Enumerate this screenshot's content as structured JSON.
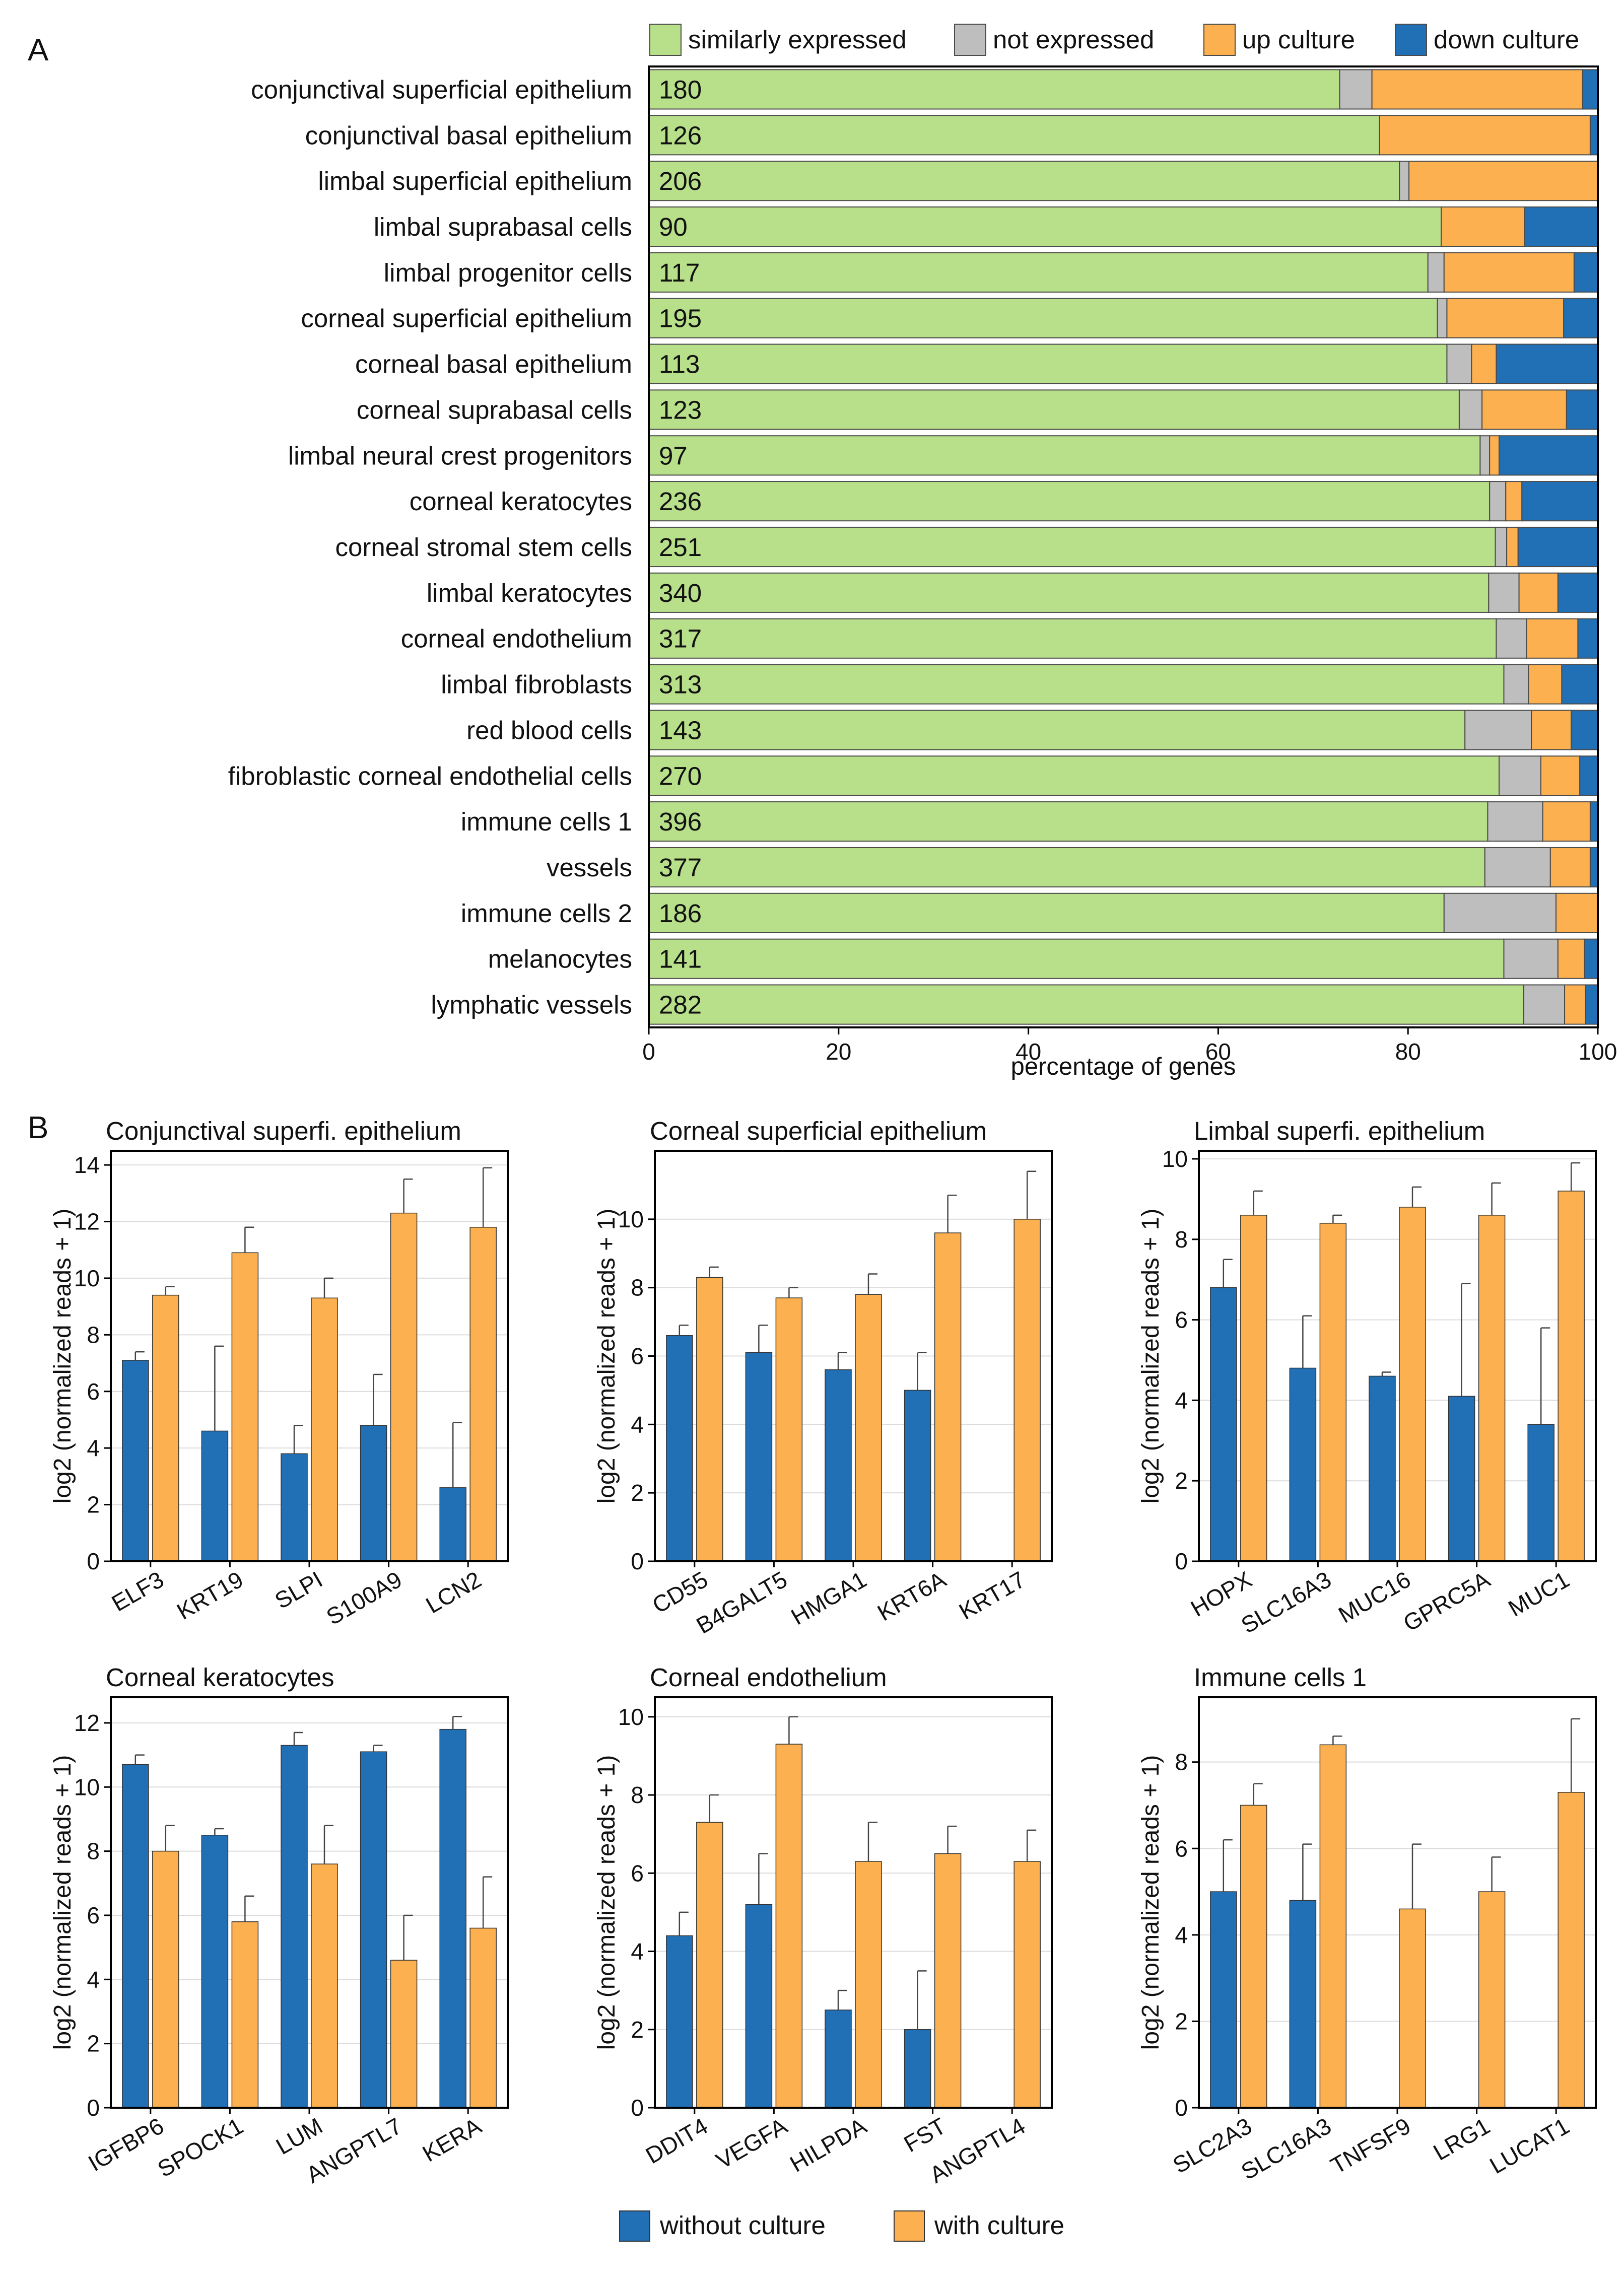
{
  "figure": {
    "panel_a_letter": "A",
    "panel_b_letter": "B"
  },
  "colors": {
    "similar": "#b8df8a",
    "not_expressed": "#bebebe",
    "up": "#fdb050",
    "down": "#2170b6",
    "without": "#2170b6",
    "with": "#fdb050"
  },
  "chart_data": [
    {
      "type": "stacked-bar-horizontal",
      "title": "",
      "xlabel": "percentage of genes",
      "xlim": [
        0,
        100
      ],
      "xticks": [
        "0",
        "20",
        "40",
        "60",
        "80",
        "100"
      ],
      "legend": [
        {
          "key": "similar",
          "label": "similarly expressed"
        },
        {
          "key": "not_expressed",
          "label": "not expressed"
        },
        {
          "key": "up",
          "label": "up culture"
        },
        {
          "key": "down",
          "label": "down culture"
        }
      ],
      "rows": [
        {
          "label": "conjunctival superficial epithelium",
          "count": "180",
          "similar": 72.8,
          "not_expressed": 3.4,
          "up": 22.2,
          "down": 1.6
        },
        {
          "label": "conjunctival basal epithelium",
          "count": "126",
          "similar": 77.0,
          "not_expressed": 0,
          "up": 22.2,
          "down": 0.8
        },
        {
          "label": "limbal superficial epithelium",
          "count": "206",
          "similar": 79.1,
          "not_expressed": 1.0,
          "up": 19.9,
          "down": 0
        },
        {
          "label": "limbal suprabasal cells",
          "count": "90",
          "similar": 83.5,
          "not_expressed": 0,
          "up": 8.8,
          "down": 7.7
        },
        {
          "label": "limbal progenitor cells",
          "count": "117",
          "similar": 82.1,
          "not_expressed": 1.7,
          "up": 13.7,
          "down": 2.5
        },
        {
          "label": "corneal superficial epithelium",
          "count": "195",
          "similar": 83.1,
          "not_expressed": 1.0,
          "up": 12.3,
          "down": 3.6
        },
        {
          "label": "corneal basal epithelium",
          "count": "113",
          "similar": 84.1,
          "not_expressed": 2.6,
          "up": 2.6,
          "down": 10.7
        },
        {
          "label": "corneal suprabasal cells",
          "count": "123",
          "similar": 85.4,
          "not_expressed": 2.4,
          "up": 8.9,
          "down": 3.3
        },
        {
          "label": "limbal neural crest progenitors",
          "count": "97",
          "similar": 87.6,
          "not_expressed": 1.0,
          "up": 1.0,
          "down": 10.4
        },
        {
          "label": "corneal keratocytes",
          "count": "236",
          "similar": 88.6,
          "not_expressed": 1.7,
          "up": 1.7,
          "down": 8.0
        },
        {
          "label": "corneal stromal stem cells",
          "count": "251",
          "similar": 89.2,
          "not_expressed": 1.2,
          "up": 1.2,
          "down": 8.4
        },
        {
          "label": "limbal keratocytes",
          "count": "340",
          "similar": 88.5,
          "not_expressed": 3.2,
          "up": 4.1,
          "down": 4.2
        },
        {
          "label": "corneal endothelium",
          "count": "317",
          "similar": 89.3,
          "not_expressed": 3.2,
          "up": 5.4,
          "down": 2.1
        },
        {
          "label": "limbal fibroblasts",
          "count": "313",
          "similar": 90.1,
          "not_expressed": 2.6,
          "up": 3.5,
          "down": 3.8
        },
        {
          "label": "red blood cells",
          "count": "143",
          "similar": 86.0,
          "not_expressed": 7.0,
          "up": 4.2,
          "down": 2.8
        },
        {
          "label": "fibroblastic corneal endothelial cells",
          "count": "270",
          "similar": 89.6,
          "not_expressed": 4.4,
          "up": 4.1,
          "down": 1.9
        },
        {
          "label": "immune cells 1",
          "count": "396",
          "similar": 88.4,
          "not_expressed": 5.8,
          "up": 5.0,
          "down": 0.8
        },
        {
          "label": "vessels",
          "count": "377",
          "similar": 88.1,
          "not_expressed": 6.9,
          "up": 4.2,
          "down": 0.8
        },
        {
          "label": "immune cells 2",
          "count": "186",
          "similar": 83.8,
          "not_expressed": 11.8,
          "up": 4.4,
          "down": 0
        },
        {
          "label": "melanocytes",
          "count": "141",
          "similar": 90.1,
          "not_expressed": 5.7,
          "up": 2.8,
          "down": 1.4
        },
        {
          "label": "lymphatic vessels",
          "count": "282",
          "similar": 92.2,
          "not_expressed": 4.3,
          "up": 2.2,
          "down": 1.3
        }
      ]
    },
    {
      "type": "bar",
      "title": "Conjunctival superfi. epithelium",
      "ylabel": "log2 (normalized reads + 1)",
      "ylim": [
        0,
        14.5
      ],
      "yticks": [
        0,
        2,
        4,
        6,
        8,
        10,
        12,
        14
      ],
      "categories": [
        "ELF3",
        "KRT19",
        "SLPI",
        "S100A9",
        "LCN2"
      ],
      "series": [
        {
          "name": "without culture",
          "values": [
            7.1,
            4.6,
            3.8,
            4.8,
            2.6
          ],
          "errors": [
            0.3,
            3.0,
            1.0,
            1.8,
            2.3
          ]
        },
        {
          "name": "with culture",
          "values": [
            9.4,
            10.9,
            9.3,
            12.3,
            11.8
          ],
          "errors": [
            0.3,
            0.9,
            0.7,
            1.2,
            2.1
          ]
        }
      ]
    },
    {
      "type": "bar",
      "title": "Corneal superficial epithelium",
      "ylabel": "log2 (normalized reads + 1)",
      "ylim": [
        0,
        12
      ],
      "yticks": [
        0,
        2,
        4,
        6,
        8,
        10
      ],
      "categories": [
        "CD55",
        "B4GALT5",
        "HMGA1",
        "KRT6A",
        "KRT17"
      ],
      "series": [
        {
          "name": "without culture",
          "values": [
            6.6,
            6.1,
            5.6,
            5.0,
            0
          ],
          "errors": [
            0.3,
            0.8,
            0.5,
            1.1,
            0
          ]
        },
        {
          "name": "with culture",
          "values": [
            8.3,
            7.7,
            7.8,
            9.6,
            10.0
          ],
          "errors": [
            0.3,
            0.3,
            0.6,
            1.1,
            1.4
          ]
        }
      ]
    },
    {
      "type": "bar",
      "title": "Limbal superfi. epithelium",
      "ylabel": "log2 (normalized reads + 1)",
      "ylim": [
        0,
        10.2
      ],
      "yticks": [
        0,
        2,
        4,
        6,
        8,
        10
      ],
      "categories": [
        "HOPX",
        "SLC16A3",
        "MUC16",
        "GPRC5A",
        "MUC1"
      ],
      "series": [
        {
          "name": "without culture",
          "values": [
            6.8,
            4.8,
            4.6,
            4.1,
            3.4
          ],
          "errors": [
            0.7,
            1.3,
            0.1,
            2.8,
            2.4
          ]
        },
        {
          "name": "with culture",
          "values": [
            8.6,
            8.4,
            8.8,
            8.6,
            9.2
          ],
          "errors": [
            0.6,
            0.2,
            0.5,
            0.8,
            0.7
          ]
        }
      ]
    },
    {
      "type": "bar",
      "title": "Corneal keratocytes",
      "ylabel": "log2 (normalized reads + 1)",
      "ylim": [
        0,
        12.8
      ],
      "yticks": [
        0,
        2,
        4,
        6,
        8,
        10,
        12
      ],
      "categories": [
        "IGFBP6",
        "SPOCK1",
        "LUM",
        "ANGPTL7",
        "KERA"
      ],
      "series": [
        {
          "name": "without culture",
          "values": [
            10.7,
            8.5,
            11.3,
            11.1,
            11.8
          ],
          "errors": [
            0.3,
            0.2,
            0.4,
            0.2,
            0.4
          ]
        },
        {
          "name": "with culture",
          "values": [
            8.0,
            5.8,
            7.6,
            4.6,
            5.6
          ],
          "errors": [
            0.8,
            0.8,
            1.2,
            1.4,
            1.6
          ]
        }
      ]
    },
    {
      "type": "bar",
      "title": "Corneal endothelium",
      "ylabel": "log2 (normalized reads + 1)",
      "ylim": [
        0,
        10.5
      ],
      "yticks": [
        0,
        2,
        4,
        6,
        8,
        10
      ],
      "categories": [
        "DDIT4",
        "VEGFA",
        "HILPDA",
        "FST",
        "ANGPTL4"
      ],
      "series": [
        {
          "name": "without culture",
          "values": [
            4.4,
            5.2,
            2.5,
            2.0,
            0
          ],
          "errors": [
            0.6,
            1.3,
            0.5,
            1.5,
            0
          ]
        },
        {
          "name": "with culture",
          "values": [
            7.3,
            9.3,
            6.3,
            6.5,
            6.3
          ],
          "errors": [
            0.7,
            0.7,
            1.0,
            0.7,
            0.8
          ]
        }
      ]
    },
    {
      "type": "bar",
      "title": "Immune cells 1",
      "ylabel": "log2 (normalized reads + 1)",
      "ylim": [
        0,
        9.5
      ],
      "yticks": [
        0,
        2,
        4,
        6,
        8
      ],
      "categories": [
        "SLC2A3",
        "SLC16A3",
        "TNFSF9",
        "LRG1",
        "LUCAT1"
      ],
      "series": [
        {
          "name": "without culture",
          "values": [
            5.0,
            4.8,
            0,
            0,
            0
          ],
          "errors": [
            1.2,
            1.3,
            0,
            0,
            0
          ]
        },
        {
          "name": "with culture",
          "values": [
            7.0,
            8.4,
            4.6,
            5.0,
            7.3
          ],
          "errors": [
            0.5,
            0.2,
            1.5,
            0.8,
            1.7
          ]
        }
      ]
    }
  ],
  "legend_b": [
    {
      "key": "without",
      "label": "without culture"
    },
    {
      "key": "with",
      "label": "with culture"
    }
  ]
}
